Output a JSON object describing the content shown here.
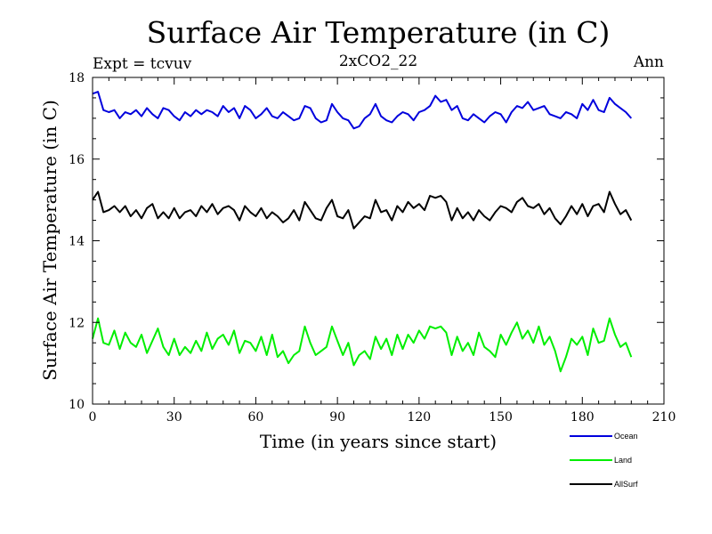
{
  "chart_data": {
    "type": "line",
    "title": "Surface Air Temperature (in C)",
    "subtitle": "2xCO2_22",
    "left_note": "Expt = tcvuv",
    "right_note": "Ann",
    "xlabel": "Time (in years since start)",
    "ylabel": "Surface Air Temperature (in C)",
    "xlim": [
      0,
      210
    ],
    "ylim": [
      10,
      18
    ],
    "xticks": [
      0,
      30,
      60,
      90,
      120,
      150,
      180,
      210
    ],
    "yticks": [
      10,
      12,
      14,
      16,
      18
    ],
    "legend_position": "bottom-right",
    "grid": false,
    "series": [
      {
        "name": "Ocean",
        "color": "#0000dd",
        "x": [
          0,
          2,
          4,
          6,
          8,
          10,
          12,
          14,
          16,
          18,
          20,
          22,
          24,
          26,
          28,
          30,
          32,
          34,
          36,
          38,
          40,
          42,
          44,
          46,
          48,
          50,
          52,
          54,
          56,
          58,
          60,
          62,
          64,
          66,
          68,
          70,
          72,
          74,
          76,
          78,
          80,
          82,
          84,
          86,
          88,
          90,
          92,
          94,
          96,
          98,
          100,
          102,
          104,
          106,
          108,
          110,
          112,
          114,
          116,
          118,
          120,
          122,
          124,
          126,
          128,
          130,
          132,
          134,
          136,
          138,
          140,
          142,
          144,
          146,
          148,
          150,
          152,
          154,
          156,
          158,
          160,
          162,
          164,
          166,
          168,
          170,
          172,
          174,
          176,
          178,
          180,
          182,
          184,
          186,
          188,
          190,
          192,
          194,
          196,
          198
        ],
        "values": [
          17.6,
          17.65,
          17.2,
          17.15,
          17.2,
          17.0,
          17.15,
          17.1,
          17.2,
          17.05,
          17.25,
          17.1,
          17.0,
          17.25,
          17.2,
          17.05,
          16.95,
          17.15,
          17.05,
          17.2,
          17.1,
          17.2,
          17.15,
          17.05,
          17.3,
          17.15,
          17.25,
          17.0,
          17.3,
          17.2,
          17.0,
          17.1,
          17.25,
          17.05,
          17.0,
          17.15,
          17.05,
          16.95,
          17.0,
          17.3,
          17.25,
          17.0,
          16.9,
          16.95,
          17.35,
          17.15,
          17.0,
          16.95,
          16.75,
          16.8,
          17.0,
          17.1,
          17.35,
          17.05,
          16.95,
          16.9,
          17.05,
          17.15,
          17.1,
          16.95,
          17.15,
          17.2,
          17.3,
          17.55,
          17.4,
          17.45,
          17.2,
          17.3,
          17.0,
          16.95,
          17.1,
          17.0,
          16.9,
          17.05,
          17.15,
          17.1,
          16.9,
          17.15,
          17.3,
          17.25,
          17.4,
          17.2,
          17.25,
          17.3,
          17.1,
          17.05,
          17.0,
          17.15,
          17.1,
          17.0,
          17.35,
          17.2,
          17.45,
          17.2,
          17.15,
          17.5,
          17.35,
          17.25,
          17.15,
          17.0
        ]
      },
      {
        "name": "Land",
        "color": "#00ee00",
        "x": [
          0,
          2,
          4,
          6,
          8,
          10,
          12,
          14,
          16,
          18,
          20,
          22,
          24,
          26,
          28,
          30,
          32,
          34,
          36,
          38,
          40,
          42,
          44,
          46,
          48,
          50,
          52,
          54,
          56,
          58,
          60,
          62,
          64,
          66,
          68,
          70,
          72,
          74,
          76,
          78,
          80,
          82,
          84,
          86,
          88,
          90,
          92,
          94,
          96,
          98,
          100,
          102,
          104,
          106,
          108,
          110,
          112,
          114,
          116,
          118,
          120,
          122,
          124,
          126,
          128,
          130,
          132,
          134,
          136,
          138,
          140,
          142,
          144,
          146,
          148,
          150,
          152,
          154,
          156,
          158,
          160,
          162,
          164,
          166,
          168,
          170,
          172,
          174,
          176,
          178,
          180,
          182,
          184,
          186,
          188,
          190,
          192,
          194,
          196,
          198
        ],
        "values": [
          11.6,
          12.1,
          11.5,
          11.45,
          11.8,
          11.35,
          11.75,
          11.5,
          11.4,
          11.7,
          11.25,
          11.55,
          11.85,
          11.4,
          11.2,
          11.6,
          11.2,
          11.4,
          11.25,
          11.55,
          11.3,
          11.75,
          11.35,
          11.6,
          11.7,
          11.45,
          11.8,
          11.25,
          11.55,
          11.5,
          11.3,
          11.65,
          11.2,
          11.7,
          11.15,
          11.3,
          11.0,
          11.2,
          11.3,
          11.9,
          11.5,
          11.2,
          11.3,
          11.4,
          11.9,
          11.55,
          11.2,
          11.5,
          10.95,
          11.2,
          11.3,
          11.1,
          11.65,
          11.35,
          11.6,
          11.2,
          11.7,
          11.35,
          11.7,
          11.5,
          11.8,
          11.6,
          11.9,
          11.85,
          11.9,
          11.75,
          11.2,
          11.65,
          11.3,
          11.5,
          11.2,
          11.75,
          11.4,
          11.3,
          11.15,
          11.7,
          11.45,
          11.75,
          12.0,
          11.6,
          11.8,
          11.5,
          11.9,
          11.45,
          11.65,
          11.3,
          10.8,
          11.15,
          11.6,
          11.45,
          11.65,
          11.2,
          11.85,
          11.5,
          11.55,
          12.1,
          11.7,
          11.4,
          11.5,
          11.15
        ]
      },
      {
        "name": "AllSurf",
        "color": "#000000",
        "x": [
          0,
          2,
          4,
          6,
          8,
          10,
          12,
          14,
          16,
          18,
          20,
          22,
          24,
          26,
          28,
          30,
          32,
          34,
          36,
          38,
          40,
          42,
          44,
          46,
          48,
          50,
          52,
          54,
          56,
          58,
          60,
          62,
          64,
          66,
          68,
          70,
          72,
          74,
          76,
          78,
          80,
          82,
          84,
          86,
          88,
          90,
          92,
          94,
          96,
          98,
          100,
          102,
          104,
          106,
          108,
          110,
          112,
          114,
          116,
          118,
          120,
          122,
          124,
          126,
          128,
          130,
          132,
          134,
          136,
          138,
          140,
          142,
          144,
          146,
          148,
          150,
          152,
          154,
          156,
          158,
          160,
          162,
          164,
          166,
          168,
          170,
          172,
          174,
          176,
          178,
          180,
          182,
          184,
          186,
          188,
          190,
          192,
          194,
          196,
          198
        ],
        "values": [
          15.0,
          15.2,
          14.7,
          14.75,
          14.85,
          14.7,
          14.85,
          14.6,
          14.75,
          14.55,
          14.8,
          14.9,
          14.55,
          14.7,
          14.55,
          14.8,
          14.55,
          14.7,
          14.75,
          14.6,
          14.85,
          14.7,
          14.9,
          14.65,
          14.8,
          14.85,
          14.75,
          14.5,
          14.85,
          14.7,
          14.6,
          14.8,
          14.55,
          14.7,
          14.6,
          14.45,
          14.55,
          14.75,
          14.5,
          14.95,
          14.75,
          14.55,
          14.5,
          14.8,
          15.0,
          14.6,
          14.55,
          14.75,
          14.3,
          14.45,
          14.6,
          14.55,
          15.0,
          14.7,
          14.75,
          14.5,
          14.85,
          14.7,
          14.95,
          14.8,
          14.9,
          14.75,
          15.1,
          15.05,
          15.1,
          14.95,
          14.5,
          14.8,
          14.55,
          14.7,
          14.5,
          14.75,
          14.6,
          14.5,
          14.7,
          14.85,
          14.8,
          14.7,
          14.95,
          15.05,
          14.85,
          14.8,
          14.9,
          14.65,
          14.8,
          14.55,
          14.4,
          14.6,
          14.85,
          14.65,
          14.9,
          14.6,
          14.85,
          14.9,
          14.7,
          15.2,
          14.9,
          14.65,
          14.75,
          14.5
        ]
      }
    ]
  }
}
